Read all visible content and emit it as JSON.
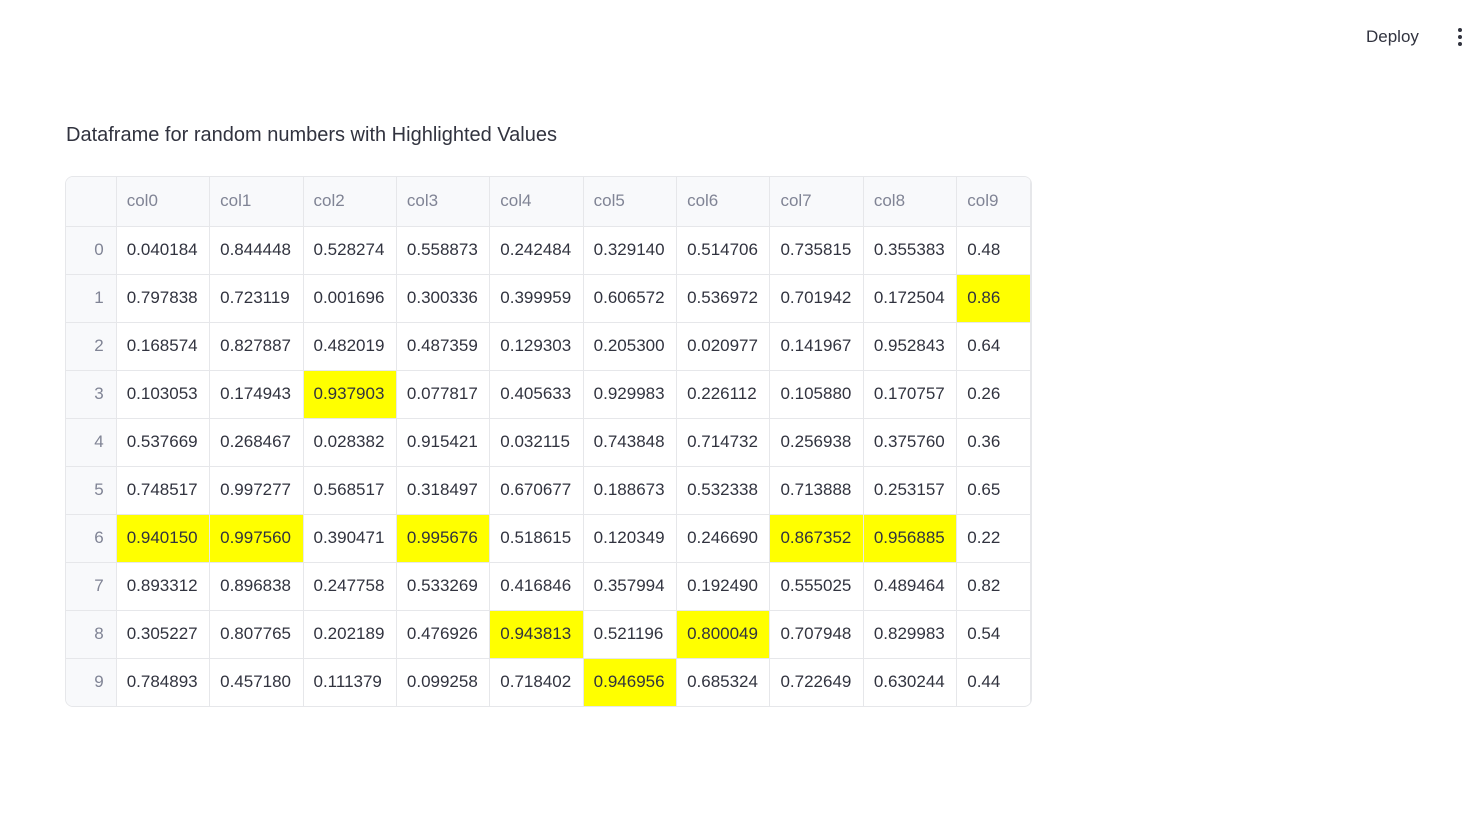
{
  "header": {
    "deploy_label": "Deploy",
    "menu_icon": "more-vertical-icon"
  },
  "page": {
    "title": "Dataframe for random numbers with Highlighted Values"
  },
  "dataframe": {
    "highlight_color": "#ffff00",
    "columns": [
      "col0",
      "col1",
      "col2",
      "col3",
      "col4",
      "col5",
      "col6",
      "col7",
      "col8",
      "col9"
    ],
    "rows": [
      {
        "index": "0",
        "cells": [
          {
            "v": "0.040184",
            "h": false
          },
          {
            "v": "0.844448",
            "h": false
          },
          {
            "v": "0.528274",
            "h": false
          },
          {
            "v": "0.558873",
            "h": false
          },
          {
            "v": "0.242484",
            "h": false
          },
          {
            "v": "0.329140",
            "h": false
          },
          {
            "v": "0.514706",
            "h": false
          },
          {
            "v": "0.735815",
            "h": false
          },
          {
            "v": "0.355383",
            "h": false
          },
          {
            "v": "0.48",
            "h": false
          }
        ]
      },
      {
        "index": "1",
        "cells": [
          {
            "v": "0.797838",
            "h": false
          },
          {
            "v": "0.723119",
            "h": false
          },
          {
            "v": "0.001696",
            "h": false
          },
          {
            "v": "0.300336",
            "h": false
          },
          {
            "v": "0.399959",
            "h": false
          },
          {
            "v": "0.606572",
            "h": false
          },
          {
            "v": "0.536972",
            "h": false
          },
          {
            "v": "0.701942",
            "h": false
          },
          {
            "v": "0.172504",
            "h": false
          },
          {
            "v": "0.86",
            "h": true
          }
        ]
      },
      {
        "index": "2",
        "cells": [
          {
            "v": "0.168574",
            "h": false
          },
          {
            "v": "0.827887",
            "h": false
          },
          {
            "v": "0.482019",
            "h": false
          },
          {
            "v": "0.487359",
            "h": false
          },
          {
            "v": "0.129303",
            "h": false
          },
          {
            "v": "0.205300",
            "h": false
          },
          {
            "v": "0.020977",
            "h": false
          },
          {
            "v": "0.141967",
            "h": false
          },
          {
            "v": "0.952843",
            "h": false
          },
          {
            "v": "0.64",
            "h": false
          }
        ]
      },
      {
        "index": "3",
        "cells": [
          {
            "v": "0.103053",
            "h": false
          },
          {
            "v": "0.174943",
            "h": false
          },
          {
            "v": "0.937903",
            "h": true
          },
          {
            "v": "0.077817",
            "h": false
          },
          {
            "v": "0.405633",
            "h": false
          },
          {
            "v": "0.929983",
            "h": false
          },
          {
            "v": "0.226112",
            "h": false
          },
          {
            "v": "0.105880",
            "h": false
          },
          {
            "v": "0.170757",
            "h": false
          },
          {
            "v": "0.26",
            "h": false
          }
        ]
      },
      {
        "index": "4",
        "cells": [
          {
            "v": "0.537669",
            "h": false
          },
          {
            "v": "0.268467",
            "h": false
          },
          {
            "v": "0.028382",
            "h": false
          },
          {
            "v": "0.915421",
            "h": false
          },
          {
            "v": "0.032115",
            "h": false
          },
          {
            "v": "0.743848",
            "h": false
          },
          {
            "v": "0.714732",
            "h": false
          },
          {
            "v": "0.256938",
            "h": false
          },
          {
            "v": "0.375760",
            "h": false
          },
          {
            "v": "0.36",
            "h": false
          }
        ]
      },
      {
        "index": "5",
        "cells": [
          {
            "v": "0.748517",
            "h": false
          },
          {
            "v": "0.997277",
            "h": false
          },
          {
            "v": "0.568517",
            "h": false
          },
          {
            "v": "0.318497",
            "h": false
          },
          {
            "v": "0.670677",
            "h": false
          },
          {
            "v": "0.188673",
            "h": false
          },
          {
            "v": "0.532338",
            "h": false
          },
          {
            "v": "0.713888",
            "h": false
          },
          {
            "v": "0.253157",
            "h": false
          },
          {
            "v": "0.65",
            "h": false
          }
        ]
      },
      {
        "index": "6",
        "cells": [
          {
            "v": "0.940150",
            "h": true
          },
          {
            "v": "0.997560",
            "h": true
          },
          {
            "v": "0.390471",
            "h": false
          },
          {
            "v": "0.995676",
            "h": true
          },
          {
            "v": "0.518615",
            "h": false
          },
          {
            "v": "0.120349",
            "h": false
          },
          {
            "v": "0.246690",
            "h": false
          },
          {
            "v": "0.867352",
            "h": true
          },
          {
            "v": "0.956885",
            "h": true
          },
          {
            "v": "0.22",
            "h": false
          }
        ]
      },
      {
        "index": "7",
        "cells": [
          {
            "v": "0.893312",
            "h": false
          },
          {
            "v": "0.896838",
            "h": false
          },
          {
            "v": "0.247758",
            "h": false
          },
          {
            "v": "0.533269",
            "h": false
          },
          {
            "v": "0.416846",
            "h": false
          },
          {
            "v": "0.357994",
            "h": false
          },
          {
            "v": "0.192490",
            "h": false
          },
          {
            "v": "0.555025",
            "h": false
          },
          {
            "v": "0.489464",
            "h": false
          },
          {
            "v": "0.82",
            "h": false
          }
        ]
      },
      {
        "index": "8",
        "cells": [
          {
            "v": "0.305227",
            "h": false
          },
          {
            "v": "0.807765",
            "h": false
          },
          {
            "v": "0.202189",
            "h": false
          },
          {
            "v": "0.476926",
            "h": false
          },
          {
            "v": "0.943813",
            "h": true
          },
          {
            "v": "0.521196",
            "h": false
          },
          {
            "v": "0.800049",
            "h": true
          },
          {
            "v": "0.707948",
            "h": false
          },
          {
            "v": "0.829983",
            "h": false
          },
          {
            "v": "0.54",
            "h": false
          }
        ]
      },
      {
        "index": "9",
        "cells": [
          {
            "v": "0.784893",
            "h": false
          },
          {
            "v": "0.457180",
            "h": false
          },
          {
            "v": "0.111379",
            "h": false
          },
          {
            "v": "0.099258",
            "h": false
          },
          {
            "v": "0.718402",
            "h": false
          },
          {
            "v": "0.946956",
            "h": true
          },
          {
            "v": "0.685324",
            "h": false
          },
          {
            "v": "0.722649",
            "h": false
          },
          {
            "v": "0.630244",
            "h": false
          },
          {
            "v": "0.44",
            "h": false
          }
        ]
      }
    ]
  }
}
